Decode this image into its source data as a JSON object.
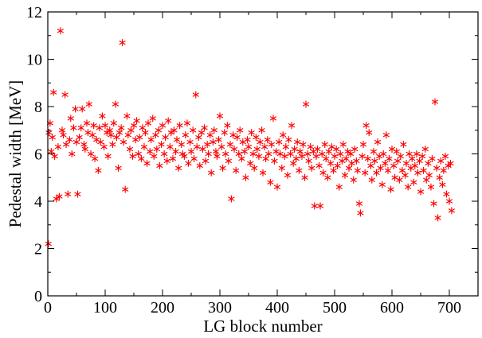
{
  "chart_data": {
    "type": "scatter",
    "xlabel": "LG block number",
    "ylabel": "Pedestal width [MeV]",
    "xlim": [
      0,
      750
    ],
    "ylim": [
      0,
      12
    ],
    "x_ticks": [
      0,
      100,
      200,
      300,
      400,
      500,
      600,
      700
    ],
    "y_ticks": [
      0,
      2,
      4,
      6,
      8,
      10,
      12
    ],
    "x_tick_labels": [
      "0",
      "100",
      "200",
      "300",
      "400",
      "500",
      "600",
      "700"
    ],
    "y_tick_labels": [
      "0",
      "2",
      "4",
      "6",
      "8",
      "10",
      "12"
    ],
    "grid": false,
    "marker": "asterisk",
    "point_color": "#ff0000",
    "series": [
      {
        "points": [
          [
            1,
            2.2
          ],
          [
            2,
            6.9
          ],
          [
            4,
            7.3
          ],
          [
            6,
            6.1
          ],
          [
            8,
            6.7
          ],
          [
            10,
            8.6
          ],
          [
            12,
            5.9
          ],
          [
            15,
            4.1
          ],
          [
            18,
            6.3
          ],
          [
            20,
            4.2
          ],
          [
            22,
            11.2
          ],
          [
            25,
            7.0
          ],
          [
            27,
            6.8
          ],
          [
            30,
            8.5
          ],
          [
            32,
            6.4
          ],
          [
            35,
            4.3
          ],
          [
            38,
            6.6
          ],
          [
            40,
            7.5
          ],
          [
            42,
            6.0
          ],
          [
            45,
            7.1
          ],
          [
            48,
            7.9
          ],
          [
            50,
            6.5
          ],
          [
            52,
            4.3
          ],
          [
            55,
            6.7
          ],
          [
            58,
            7.1
          ],
          [
            60,
            7.9
          ],
          [
            63,
            6.4
          ],
          [
            65,
            6.2
          ],
          [
            68,
            7.3
          ],
          [
            70,
            6.9
          ],
          [
            72,
            8.1
          ],
          [
            75,
            6.0
          ],
          [
            78,
            6.8
          ],
          [
            80,
            7.2
          ],
          [
            82,
            5.8
          ],
          [
            85,
            6.6
          ],
          [
            88,
            5.3
          ],
          [
            90,
            7.1
          ],
          [
            92,
            6.5
          ],
          [
            95,
            7.6
          ],
          [
            98,
            6.3
          ],
          [
            100,
            7.2
          ],
          [
            103,
            6.9
          ],
          [
            105,
            5.9
          ],
          [
            108,
            7.0
          ],
          [
            110,
            6.8
          ],
          [
            113,
            6.4
          ],
          [
            115,
            7.3
          ],
          [
            118,
            8.1
          ],
          [
            120,
            6.7
          ],
          [
            123,
            5.4
          ],
          [
            125,
            6.9
          ],
          [
            128,
            7.1
          ],
          [
            130,
            10.7
          ],
          [
            132,
            6.5
          ],
          [
            135,
            4.5
          ],
          [
            138,
            7.6
          ],
          [
            140,
            6.8
          ],
          [
            143,
            6.2
          ],
          [
            145,
            7.0
          ],
          [
            148,
            5.9
          ],
          [
            150,
            7.2
          ],
          [
            153,
            6.6
          ],
          [
            155,
            7.4
          ],
          [
            158,
            6.0
          ],
          [
            160,
            6.7
          ],
          [
            163,
            5.8
          ],
          [
            165,
            7.1
          ],
          [
            168,
            6.3
          ],
          [
            170,
            6.9
          ],
          [
            173,
            5.6
          ],
          [
            175,
            7.3
          ],
          [
            178,
            6.1
          ],
          [
            180,
            6.6
          ],
          [
            183,
            7.5
          ],
          [
            185,
            5.9
          ],
          [
            188,
            6.8
          ],
          [
            190,
            6.2
          ],
          [
            193,
            7.0
          ],
          [
            195,
            5.5
          ],
          [
            198,
            6.4
          ],
          [
            200,
            7.2
          ],
          [
            203,
            6.0
          ],
          [
            205,
            6.7
          ],
          [
            208,
            5.7
          ],
          [
            210,
            7.4
          ],
          [
            213,
            6.3
          ],
          [
            215,
            6.9
          ],
          [
            218,
            5.8
          ],
          [
            220,
            7.0
          ],
          [
            223,
            6.1
          ],
          [
            225,
            6.6
          ],
          [
            228,
            5.4
          ],
          [
            230,
            7.2
          ],
          [
            233,
            6.4
          ],
          [
            235,
            6.0
          ],
          [
            238,
            5.9
          ],
          [
            240,
            6.8
          ],
          [
            243,
            7.3
          ],
          [
            245,
            5.6
          ],
          [
            248,
            6.5
          ],
          [
            250,
            6.1
          ],
          [
            253,
            7.0
          ],
          [
            255,
            5.8
          ],
          [
            258,
            8.5
          ],
          [
            260,
            6.3
          ],
          [
            263,
            6.7
          ],
          [
            265,
            5.5
          ],
          [
            268,
            6.9
          ],
          [
            270,
            6.2
          ],
          [
            273,
            7.1
          ],
          [
            275,
            5.7
          ],
          [
            278,
            6.4
          ],
          [
            280,
            6.0
          ],
          [
            283,
            6.8
          ],
          [
            285,
            5.2
          ],
          [
            288,
            6.5
          ],
          [
            290,
            7.0
          ],
          [
            293,
            6.1
          ],
          [
            295,
            5.9
          ],
          [
            298,
            6.6
          ],
          [
            300,
            7.6
          ],
          [
            303,
            6.3
          ],
          [
            305,
            5.4
          ],
          [
            308,
            6.9
          ],
          [
            310,
            6.0
          ],
          [
            313,
            7.2
          ],
          [
            315,
            5.7
          ],
          [
            318,
            6.4
          ],
          [
            320,
            4.1
          ],
          [
            323,
            6.8
          ],
          [
            325,
            6.2
          ],
          [
            328,
            5.3
          ],
          [
            330,
            6.7
          ],
          [
            333,
            6.0
          ],
          [
            335,
            7.0
          ],
          [
            338,
            5.8
          ],
          [
            340,
            6.5
          ],
          [
            343,
            6.1
          ],
          [
            345,
            5.0
          ],
          [
            348,
            6.6
          ],
          [
            350,
            6.3
          ],
          [
            353,
            5.6
          ],
          [
            355,
            6.9
          ],
          [
            358,
            6.0
          ],
          [
            360,
            5.4
          ],
          [
            363,
            6.7
          ],
          [
            365,
            6.2
          ],
          [
            368,
            5.9
          ],
          [
            370,
            6.5
          ],
          [
            373,
            7.0
          ],
          [
            375,
            5.2
          ],
          [
            378,
            6.3
          ],
          [
            380,
            5.8
          ],
          [
            383,
            6.6
          ],
          [
            385,
            6.0
          ],
          [
            388,
            4.8
          ],
          [
            390,
            6.4
          ],
          [
            393,
            7.5
          ],
          [
            395,
            5.7
          ],
          [
            398,
            6.1
          ],
          [
            400,
            4.6
          ],
          [
            403,
            6.5
          ],
          [
            405,
            6.0
          ],
          [
            408,
            5.4
          ],
          [
            410,
            6.8
          ],
          [
            413,
            5.9
          ],
          [
            415,
            6.3
          ],
          [
            418,
            5.1
          ],
          [
            420,
            6.6
          ],
          [
            423,
            6.0
          ],
          [
            425,
            7.2
          ],
          [
            428,
            5.6
          ],
          [
            430,
            6.2
          ],
          [
            433,
            5.8
          ],
          [
            435,
            6.5
          ],
          [
            438,
            5.3
          ],
          [
            440,
            6.1
          ],
          [
            443,
            5.9
          ],
          [
            445,
            6.4
          ],
          [
            448,
            5.0
          ],
          [
            450,
            8.1
          ],
          [
            453,
            6.0
          ],
          [
            455,
            5.7
          ],
          [
            458,
            6.3
          ],
          [
            460,
            5.4
          ],
          [
            463,
            6.1
          ],
          [
            465,
            3.8
          ],
          [
            468,
            5.9
          ],
          [
            470,
            6.2
          ],
          [
            473,
            5.5
          ],
          [
            475,
            3.8
          ],
          [
            478,
            6.0
          ],
          [
            480,
            5.2
          ],
          [
            483,
            6.4
          ],
          [
            485,
            5.8
          ],
          [
            488,
            5.0
          ],
          [
            490,
            6.1
          ],
          [
            493,
            5.6
          ],
          [
            495,
            6.3
          ],
          [
            498,
            5.3
          ],
          [
            500,
            5.9
          ],
          [
            503,
            6.2
          ],
          [
            505,
            5.5
          ],
          [
            508,
            4.6
          ],
          [
            510,
            6.0
          ],
          [
            513,
            5.7
          ],
          [
            515,
            6.4
          ],
          [
            518,
            5.1
          ],
          [
            520,
            5.8
          ],
          [
            523,
            6.1
          ],
          [
            525,
            5.4
          ],
          [
            528,
            6.0
          ],
          [
            530,
            5.6
          ],
          [
            533,
            4.9
          ],
          [
            535,
            6.2
          ],
          [
            538,
            5.7
          ],
          [
            540,
            5.3
          ],
          [
            543,
            3.9
          ],
          [
            545,
            3.5
          ],
          [
            548,
            5.9
          ],
          [
            550,
            6.4
          ],
          [
            553,
            5.2
          ],
          [
            555,
            7.2
          ],
          [
            558,
            5.8
          ],
          [
            560,
            6.9
          ],
          [
            563,
            5.5
          ],
          [
            565,
            4.9
          ],
          [
            568,
            6.1
          ],
          [
            570,
            5.7
          ],
          [
            573,
            5.2
          ],
          [
            575,
            6.5
          ],
          [
            578,
            5.9
          ],
          [
            580,
            5.4
          ],
          [
            583,
            4.7
          ],
          [
            585,
            6.0
          ],
          [
            588,
            5.6
          ],
          [
            590,
            6.8
          ],
          [
            593,
            5.3
          ],
          [
            595,
            5.8
          ],
          [
            598,
            4.5
          ],
          [
            600,
            6.2
          ],
          [
            603,
            5.5
          ],
          [
            605,
            5.0
          ],
          [
            608,
            6.1
          ],
          [
            610,
            5.7
          ],
          [
            613,
            4.9
          ],
          [
            615,
            5.9
          ],
          [
            618,
            5.3
          ],
          [
            620,
            6.4
          ],
          [
            623,
            5.1
          ],
          [
            625,
            5.6
          ],
          [
            628,
            4.6
          ],
          [
            630,
            6.0
          ],
          [
            633,
            5.4
          ],
          [
            635,
            5.8
          ],
          [
            638,
            4.8
          ],
          [
            640,
            5.5
          ],
          [
            643,
            6.0
          ],
          [
            645,
            5.2
          ],
          [
            648,
            5.7
          ],
          [
            650,
            4.4
          ],
          [
            653,
            5.9
          ],
          [
            655,
            5.3
          ],
          [
            658,
            6.2
          ],
          [
            660,
            4.9
          ],
          [
            663,
            5.6
          ],
          [
            665,
            5.1
          ],
          [
            668,
            4.6
          ],
          [
            670,
            5.8
          ],
          [
            673,
            3.9
          ],
          [
            675,
            8.2
          ],
          [
            678,
            5.4
          ],
          [
            680,
            3.3
          ],
          [
            683,
            5.0
          ],
          [
            685,
            5.7
          ],
          [
            688,
            4.7
          ],
          [
            690,
            5.3
          ],
          [
            693,
            5.9
          ],
          [
            695,
            4.3
          ],
          [
            698,
            5.5
          ],
          [
            700,
            4.0
          ],
          [
            702,
            5.6
          ],
          [
            704,
            3.6
          ]
        ]
      }
    ]
  }
}
